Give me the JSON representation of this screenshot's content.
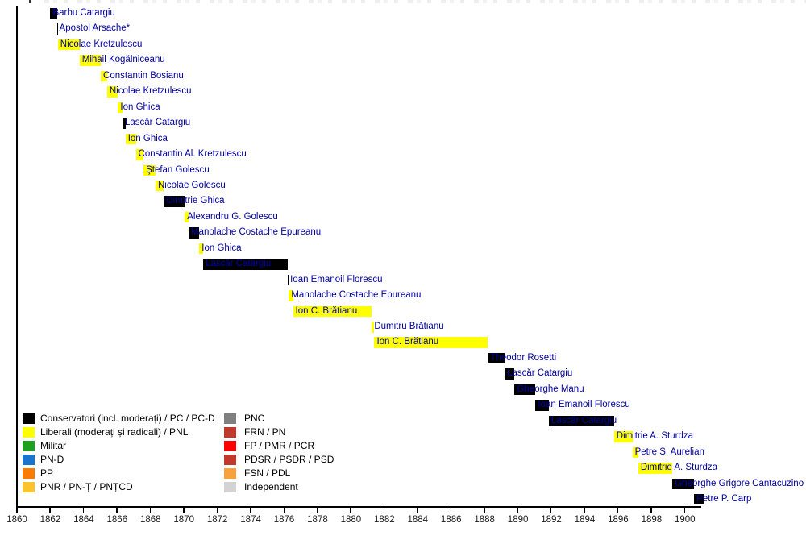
{
  "chart_data": {
    "type": "timeline",
    "title": "",
    "x_axis": {
      "min": 1860,
      "max": 1901.2,
      "tick_step": 2,
      "ticks": [
        "1860",
        "1862",
        "1864",
        "1866",
        "1868",
        "1870",
        "1872",
        "1874",
        "1876",
        "1878",
        "1880",
        "1882",
        "1884",
        "1886",
        "1888",
        "1890",
        "1892",
        "1894",
        "1896",
        "1898",
        "1900"
      ]
    },
    "party_colors": {
      "conservative": "#000000",
      "liberal": "#FFFF00"
    },
    "label_color": "#0000A3",
    "bars": [
      {
        "name": "Barbu Catargiu",
        "party": "conservative",
        "start": 1862.05,
        "end": 1862.44
      },
      {
        "name": "Apostol Arsache*",
        "party": "conservative",
        "start": 1862.44,
        "end": 1862.52
      },
      {
        "name": "Nicolae Kretzulescu",
        "party": "liberal",
        "start": 1862.5,
        "end": 1863.8
      },
      {
        "name": "Mihail Kogălniceanu",
        "party": "liberal",
        "start": 1863.8,
        "end": 1865.07
      },
      {
        "name": "Constantin Bosianu",
        "party": "liberal",
        "start": 1865.07,
        "end": 1865.45
      },
      {
        "name": "Nicolae Kretzulescu",
        "party": "liberal",
        "start": 1865.45,
        "end": 1866.1
      },
      {
        "name": "Ion Ghica",
        "party": "liberal",
        "start": 1866.1,
        "end": 1866.37
      },
      {
        "name": "Lascăr Catargiu",
        "party": "conservative",
        "start": 1866.37,
        "end": 1866.55
      },
      {
        "name": "Ion Ghica",
        "party": "liberal",
        "start": 1866.55,
        "end": 1867.17
      },
      {
        "name": "Constantin Al. Kretzulescu",
        "party": "liberal",
        "start": 1867.17,
        "end": 1867.63
      },
      {
        "name": "Ştefan Golescu",
        "party": "liberal",
        "start": 1867.63,
        "end": 1868.35
      },
      {
        "name": "Nicolae Golescu",
        "party": "liberal",
        "start": 1868.35,
        "end": 1868.85
      },
      {
        "name": "Dimitrie Ghica",
        "party": "conservative",
        "start": 1868.85,
        "end": 1870.1
      },
      {
        "name": "Alexandru G. Golescu",
        "party": "liberal",
        "start": 1870.1,
        "end": 1870.33
      },
      {
        "name": "Manolache Costache Epureanu",
        "party": "conservative",
        "start": 1870.33,
        "end": 1870.97
      },
      {
        "name": "Ion Ghica",
        "party": "liberal",
        "start": 1870.97,
        "end": 1871.2
      },
      {
        "name": "Lascăr Catargiu",
        "party": "conservative",
        "start": 1871.2,
        "end": 1876.27
      },
      {
        "name": "Ioan Emanoil Florescu",
        "party": "conservative",
        "start": 1876.27,
        "end": 1876.33
      },
      {
        "name": "Manolache Costache Epureanu",
        "party": "liberal",
        "start": 1876.33,
        "end": 1876.58
      },
      {
        "name": "Ion C. Brătianu",
        "party": "liberal",
        "start": 1876.58,
        "end": 1881.3
      },
      {
        "name": "Dumitru Brătianu",
        "party": "liberal",
        "start": 1881.3,
        "end": 1881.45
      },
      {
        "name": "Ion C. Brătianu",
        "party": "liberal",
        "start": 1881.45,
        "end": 1888.25
      },
      {
        "name": "Theodor Rosetti",
        "party": "conservative",
        "start": 1888.25,
        "end": 1889.25
      },
      {
        "name": "Lascăr Catargiu",
        "party": "conservative",
        "start": 1889.25,
        "end": 1889.85
      },
      {
        "name": "Gheorghe Manu",
        "party": "conservative",
        "start": 1889.85,
        "end": 1891.1
      },
      {
        "name": "Ioan Emanoil Florescu",
        "party": "conservative",
        "start": 1891.1,
        "end": 1891.9
      },
      {
        "name": "Lascăr Catargiu",
        "party": "conservative",
        "start": 1891.9,
        "end": 1895.8
      },
      {
        "name": "Dimitrie A. Sturdza",
        "party": "liberal",
        "start": 1895.8,
        "end": 1896.9
      },
      {
        "name": "Petre S. Aurelian",
        "party": "liberal",
        "start": 1896.9,
        "end": 1897.25
      },
      {
        "name": "Dimitrie A. Sturdza",
        "party": "liberal",
        "start": 1897.25,
        "end": 1899.3
      },
      {
        "name": "Gheorghe Grigore Cantacuzino",
        "party": "conservative",
        "start": 1899.3,
        "end": 1900.6
      },
      {
        "name": "Petre P. Carp",
        "party": "conservative",
        "start": 1900.6,
        "end": 1901.2
      }
    ],
    "legend": {
      "columns": [
        [
          {
            "label": "Conservatori (incl. moderați) / PC / PC-D",
            "color": "#000000"
          },
          {
            "label": "Liberali (moderați și radicali) / PNL",
            "color": "#FFFF00"
          },
          {
            "label": "Militar",
            "color": "#20A020"
          },
          {
            "label": "PN-D",
            "color": "#1874CD"
          },
          {
            "label": "PP",
            "color": "#F97C00"
          },
          {
            "label": "PNR / PN-Ț / PNȚCD",
            "color": "#FCC42C"
          }
        ],
        [
          {
            "label": "PNC",
            "color": "#808080"
          },
          {
            "label": "FRN / PN",
            "color": "#C0392B"
          },
          {
            "label": "FP / PMR / PCR",
            "color": "#FF0000"
          },
          {
            "label": "PDSR / PSDR / PSD",
            "color": "#C0392B"
          },
          {
            "label": "FSN / PDL",
            "color": "#F9A13C"
          },
          {
            "label": "Independent",
            "color": "#D3D3D3"
          }
        ]
      ]
    }
  }
}
